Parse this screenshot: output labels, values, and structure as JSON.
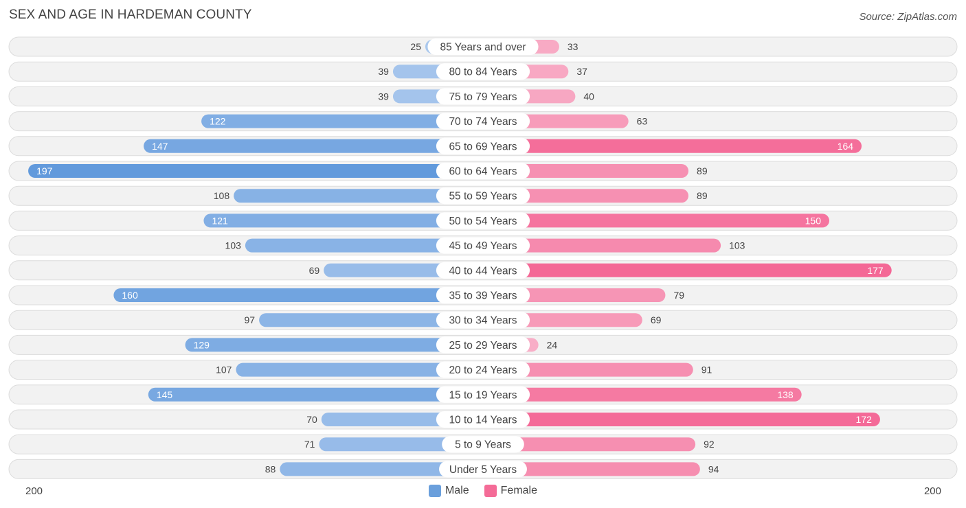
{
  "chart_data": {
    "type": "bar",
    "orientation": "horizontal-diverging",
    "title": "SEX AND AGE IN HARDEMAN COUNTY",
    "source": "Source: ZipAtlas.com",
    "categories": [
      "85 Years and over",
      "80 to 84 Years",
      "75 to 79 Years",
      "70 to 74 Years",
      "65 to 69 Years",
      "60 to 64 Years",
      "55 to 59 Years",
      "50 to 54 Years",
      "45 to 49 Years",
      "40 to 44 Years",
      "35 to 39 Years",
      "30 to 34 Years",
      "25 to 29 Years",
      "20 to 24 Years",
      "15 to 19 Years",
      "10 to 14 Years",
      "5 to 9 Years",
      "Under 5 Years"
    ],
    "series": [
      {
        "name": "Male",
        "color": "#6a9fdc",
        "values": [
          25,
          39,
          39,
          122,
          147,
          197,
          108,
          121,
          103,
          69,
          160,
          97,
          129,
          107,
          145,
          70,
          71,
          88
        ]
      },
      {
        "name": "Female",
        "color": "#f46b97",
        "values": [
          33,
          37,
          40,
          63,
          164,
          89,
          89,
          150,
          103,
          177,
          79,
          69,
          24,
          91,
          138,
          172,
          92,
          94
        ]
      }
    ],
    "xlim": [
      -200,
      200
    ],
    "axis_left_label": "200",
    "axis_right_label": "200",
    "legend_position": "bottom-center"
  }
}
